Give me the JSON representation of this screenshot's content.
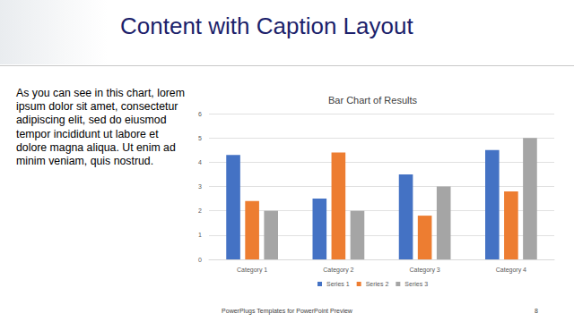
{
  "slide": {
    "title": "Content with Caption Layout",
    "caption": "As you can see in this chart, lorem ipsum dolor sit amet, consectetur adipiscing elit, sed do eiusmod tempor incididunt ut labore et dolore magna aliqua. Ut enim ad minim veniam, quis nostrud.",
    "footer": "PowerPlugs Templates for PowerPoint Preview",
    "page_number": 8
  },
  "chart_data": {
    "type": "bar",
    "title": "Bar Chart of Results",
    "categories": [
      "Category 1",
      "Category 2",
      "Category 3",
      "Category 4"
    ],
    "series": [
      {
        "name": "Series 1",
        "color": "#4472c4",
        "values": [
          4.3,
          2.5,
          3.5,
          4.5
        ]
      },
      {
        "name": "Series 2",
        "color": "#ed7d31",
        "values": [
          2.4,
          4.4,
          1.8,
          2.8
        ]
      },
      {
        "name": "Series 3",
        "color": "#a5a5a5",
        "values": [
          2,
          2,
          3,
          5
        ]
      }
    ],
    "ylim": [
      0,
      6
    ],
    "yticks": [
      0,
      1,
      2,
      3,
      4,
      5,
      6
    ],
    "grid": true,
    "legend": "bottom"
  }
}
